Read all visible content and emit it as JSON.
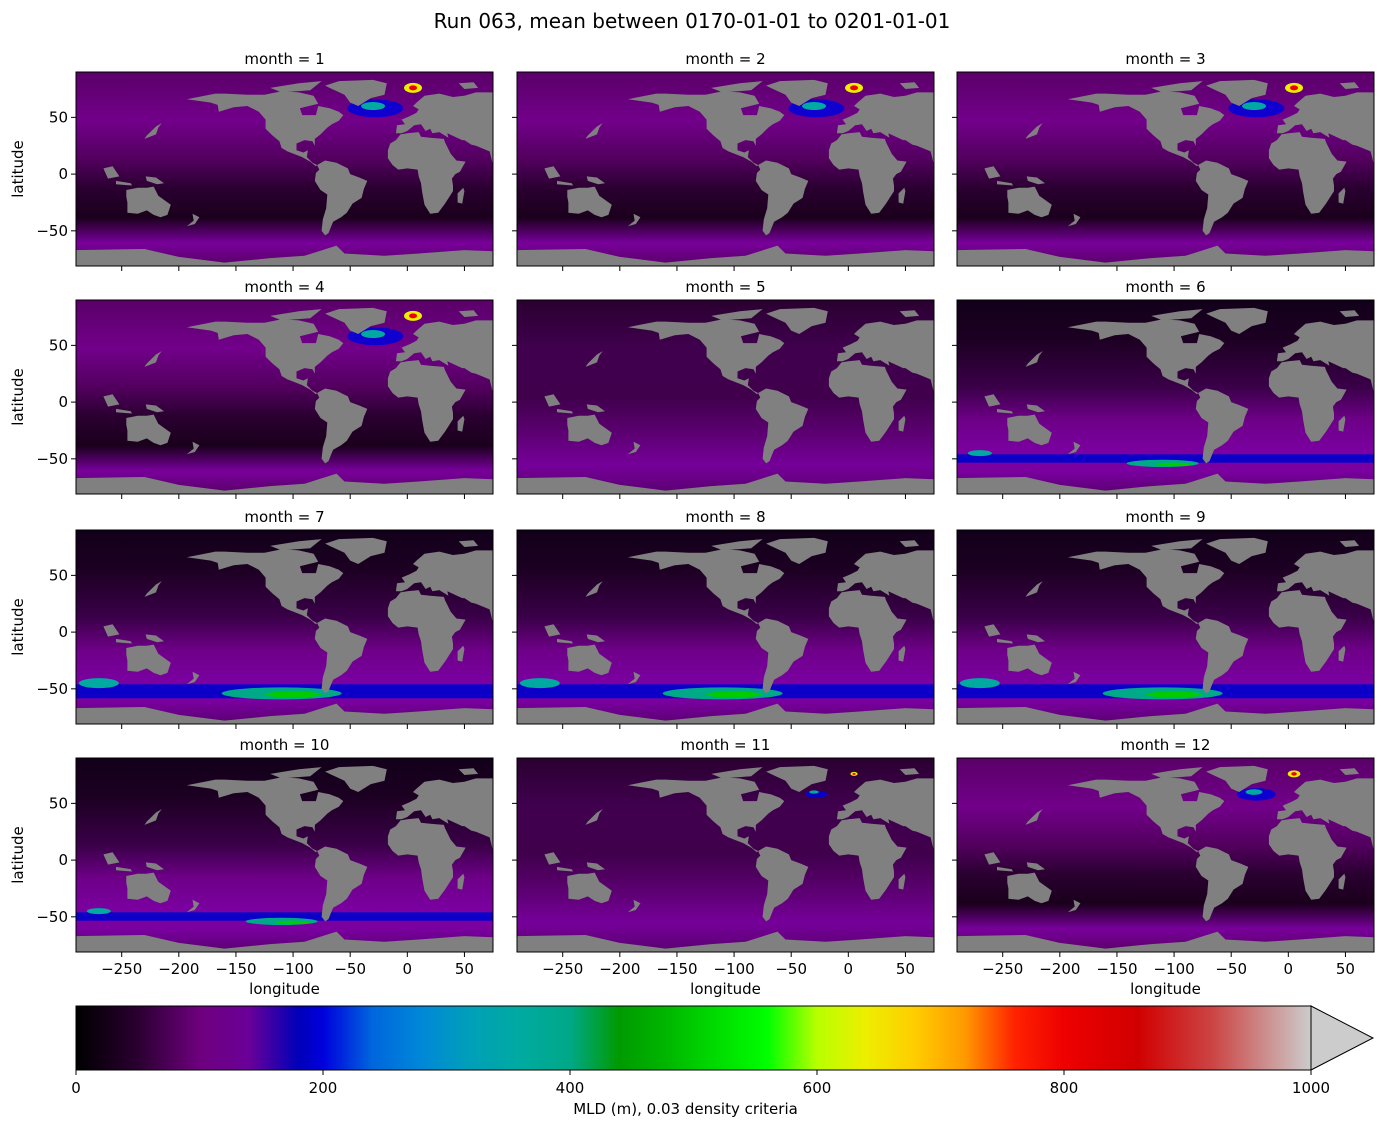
{
  "chart_data": {
    "type": "heatmap",
    "title": "Run 063, mean between 0170-01-01 to 0201-01-01",
    "panels": [
      {
        "title": "month = 1",
        "month": 1
      },
      {
        "title": "month = 2",
        "month": 2
      },
      {
        "title": "month = 3",
        "month": 3
      },
      {
        "title": "month = 4",
        "month": 4
      },
      {
        "title": "month = 5",
        "month": 5
      },
      {
        "title": "month = 6",
        "month": 6
      },
      {
        "title": "month = 7",
        "month": 7
      },
      {
        "title": "month = 8",
        "month": 8
      },
      {
        "title": "month = 9",
        "month": 9
      },
      {
        "title": "month = 10",
        "month": 10
      },
      {
        "title": "month = 11",
        "month": 11
      },
      {
        "title": "month = 12",
        "month": 12
      }
    ],
    "xlabel": "longitude",
    "ylabel": "latitude",
    "xlim": [
      -290,
      75
    ],
    "ylim": [
      -81,
      90
    ],
    "xticks": [
      -250,
      -200,
      -150,
      -100,
      -50,
      0,
      50
    ],
    "xtick_labels": [
      "−250",
      "−200",
      "−150",
      "−100",
      "−50",
      "0",
      "50"
    ],
    "yticks": [
      50,
      0,
      -50
    ],
    "ytick_labels": [
      "50",
      "0",
      "−50"
    ],
    "land_color": "#808080",
    "colormap": "nipy_spectral",
    "colorbar": {
      "label": "MLD (m), 0.03 density criteria",
      "range": [
        0,
        1000
      ],
      "extend": "max",
      "ticks": [
        0,
        200,
        400,
        600,
        800,
        1000
      ],
      "tick_labels": [
        "0",
        "200",
        "400",
        "600",
        "800",
        "1000"
      ],
      "extend_color": "#cccccc"
    }
  }
}
